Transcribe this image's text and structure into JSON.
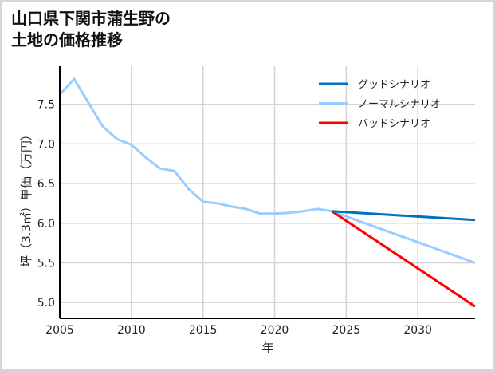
{
  "title_line1": "山口県下関市蒲生野の",
  "title_line2": "土地の価格推移",
  "chart_data": {
    "type": "line",
    "title": "山口県下関市蒲生野の土地の価格推移",
    "xlabel": "年",
    "ylabel": "坪（3.3㎡）単価（万円）",
    "xlim": [
      2005,
      2034
    ],
    "ylim": [
      4.8,
      7.98
    ],
    "xticks": [
      2005,
      2010,
      2015,
      2020,
      2025,
      2030
    ],
    "yticks": [
      5.0,
      5.5,
      6.0,
      6.5,
      7.0,
      7.5
    ],
    "ytick_labels": [
      "5.0",
      "5.5",
      "6.0",
      "6.5",
      "7.0",
      "7.5"
    ],
    "grid": true,
    "legend_position": "upper right",
    "series": [
      {
        "name": "グッドシナリオ",
        "color": "#0070c0",
        "x": [
          2024,
          2034
        ],
        "y": [
          6.15,
          6.04
        ]
      },
      {
        "name": "ノーマルシナリオ",
        "color": "#99ccff",
        "x": [
          2005,
          2006,
          2007,
          2008,
          2009,
          2010,
          2011,
          2012,
          2013,
          2014,
          2015,
          2016,
          2017,
          2018,
          2019,
          2020,
          2021,
          2022,
          2023,
          2024,
          2034
        ],
        "y": [
          7.62,
          7.82,
          7.52,
          7.22,
          7.06,
          6.99,
          6.83,
          6.69,
          6.66,
          6.43,
          6.27,
          6.25,
          6.21,
          6.18,
          6.12,
          6.12,
          6.13,
          6.15,
          6.18,
          6.15,
          5.5
        ]
      },
      {
        "name": "バッドシナリオ",
        "color": "#ff0000",
        "x": [
          2024,
          2034
        ],
        "y": [
          6.15,
          4.95
        ]
      }
    ]
  }
}
